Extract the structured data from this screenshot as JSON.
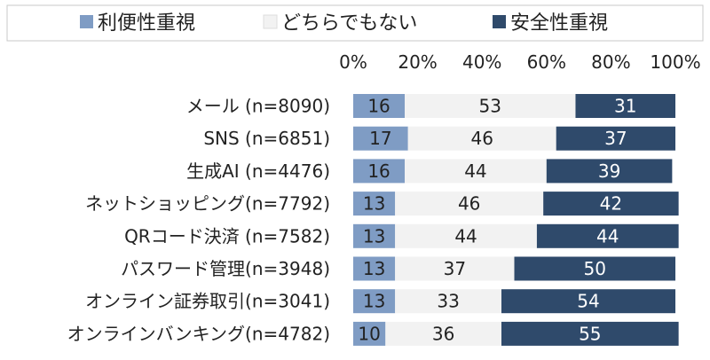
{
  "chart_data": {
    "type": "bar",
    "orientation": "horizontal",
    "stacked": true,
    "legend_position": "top",
    "xlim": [
      0,
      100
    ],
    "x_ticks": [
      "0%",
      "20%",
      "40%",
      "60%",
      "80%",
      "100%"
    ],
    "categories": [
      "メール (n=8090)",
      "SNS (n=6851)",
      "生成AI (n=4476)",
      "ネットショッピング(n=7792)",
      "QRコード決済 (n=7582)",
      "パスワード管理(n=3948)",
      "オンライン証券取引(n=3041)",
      "オンラインバンキング(n=4782)"
    ],
    "series": [
      {
        "name": "利便性重視",
        "color": "#7f9cc4",
        "values": [
          16,
          17,
          16,
          13,
          13,
          13,
          13,
          10
        ]
      },
      {
        "name": "どちらでもない",
        "color": "#f2f2f2",
        "values": [
          53,
          46,
          44,
          46,
          44,
          37,
          33,
          36
        ]
      },
      {
        "name": "安全性重視",
        "color": "#2f4a6b",
        "values": [
          31,
          37,
          39,
          42,
          44,
          50,
          54,
          55
        ]
      }
    ]
  }
}
